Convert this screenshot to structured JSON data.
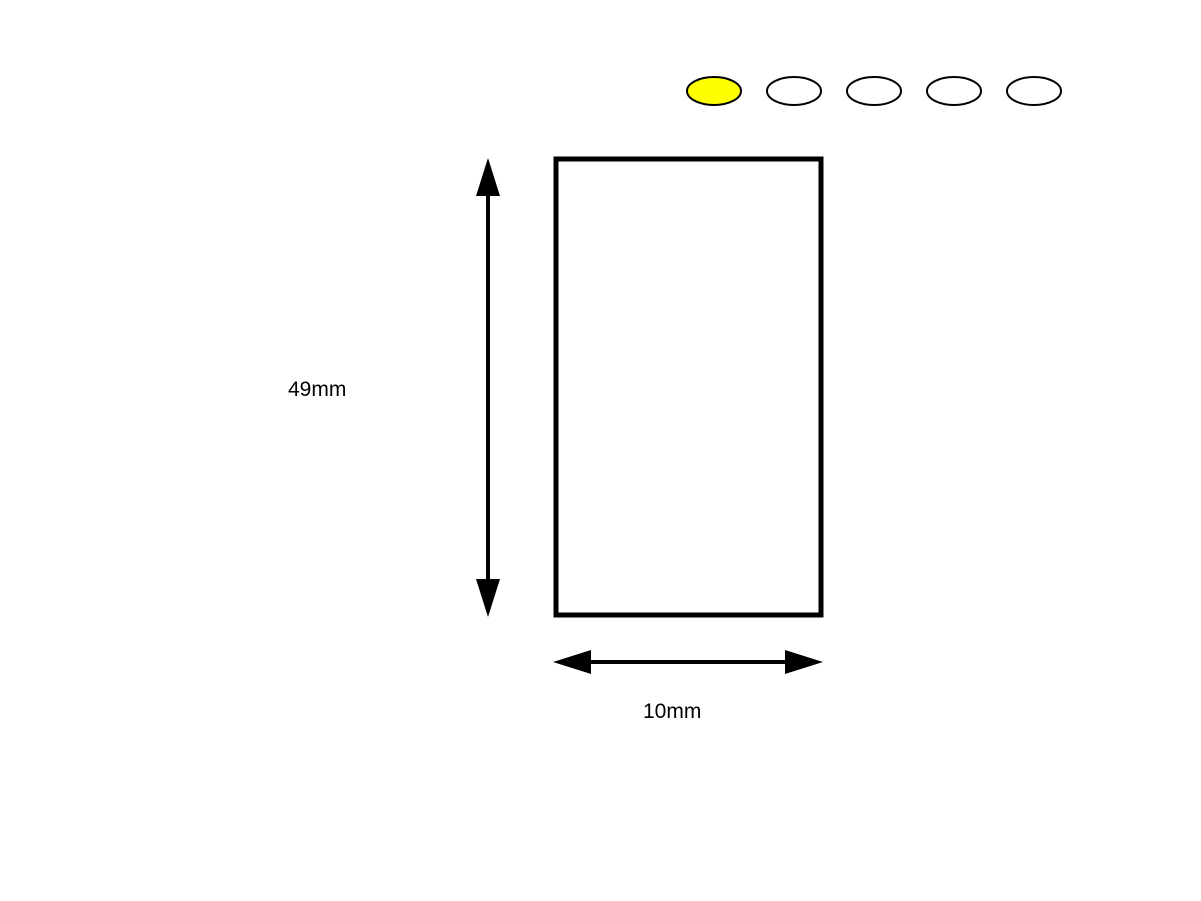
{
  "diagram": {
    "height_label": "49mm",
    "width_label": "10mm"
  },
  "progress_dots": {
    "total": 5,
    "active_index": 0,
    "active_color": "#FFFF00",
    "inactive_color": "#FFFFFF",
    "outline_color": "#000000"
  },
  "colors": {
    "stroke": "#000000",
    "background": "#FFFFFF"
  }
}
